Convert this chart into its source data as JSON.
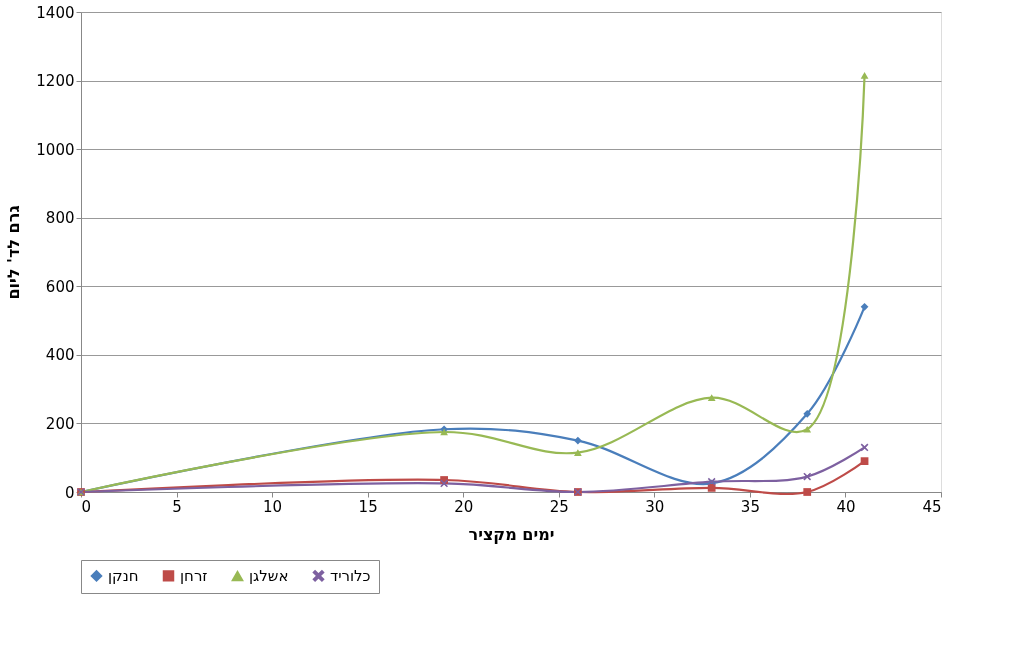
{
  "chart_data": {
    "type": "line",
    "xlabel": "ימים מקציר",
    "ylabel": "גרם לד' ליום",
    "x": [
      0,
      19,
      26,
      33,
      38,
      41
    ],
    "series": [
      {
        "name": "חנקן",
        "color": "#4a7ebb",
        "marker": "diamond",
        "values": [
          0,
          183,
          150,
          25,
          228,
          540
        ]
      },
      {
        "name": "זרחן",
        "color": "#be4b48",
        "marker": "square",
        "values": [
          0,
          35,
          0,
          12,
          0,
          90
        ]
      },
      {
        "name": "אשלגן",
        "color": "#98b954",
        "marker": "triangle",
        "values": [
          0,
          175,
          115,
          275,
          183,
          1215
        ]
      },
      {
        "name": "כלוריד",
        "color": "#7d60a0",
        "marker": "cross",
        "values": [
          0,
          25,
          0,
          30,
          45,
          130
        ]
      }
    ],
    "xlim": [
      0,
      45
    ],
    "xticks": [
      0,
      5,
      10,
      15,
      20,
      25,
      30,
      35,
      40,
      45
    ],
    "ylim": [
      0,
      1400
    ],
    "yticks": [
      0,
      200,
      400,
      600,
      800,
      {
        "value": 1000,
        "label": "1000"
      },
      {
        "value": 1200,
        "label": "1200"
      },
      {
        "value": 1400,
        "label": "1400"
      }
    ],
    "grid": "y",
    "legend": "bottom",
    "line_style": "solid"
  }
}
